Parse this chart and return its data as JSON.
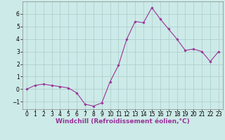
{
  "x": [
    0,
    1,
    2,
    3,
    4,
    5,
    6,
    7,
    8,
    9,
    10,
    11,
    12,
    13,
    14,
    15,
    16,
    17,
    18,
    19,
    20,
    21,
    22,
    23
  ],
  "y": [
    0.0,
    0.3,
    0.4,
    0.3,
    0.2,
    0.1,
    -0.3,
    -1.2,
    -1.35,
    -1.1,
    0.6,
    1.9,
    4.0,
    5.4,
    5.3,
    6.5,
    5.6,
    4.8,
    4.0,
    3.1,
    3.2,
    3.0,
    2.2,
    3.0
  ],
  "xlabel": "Windchill (Refroidissement éolien,°C)",
  "bg_color": "#cceae7",
  "line_color": "#993399",
  "marker_color": "#993399",
  "grid_color": "#aacccc",
  "xlim": [
    -0.5,
    23.5
  ],
  "ylim": [
    -1.6,
    7.0
  ],
  "xticks": [
    0,
    1,
    2,
    3,
    4,
    5,
    6,
    7,
    8,
    9,
    10,
    11,
    12,
    13,
    14,
    15,
    16,
    17,
    18,
    19,
    20,
    21,
    22,
    23
  ],
  "yticks": [
    -1,
    0,
    1,
    2,
    3,
    4,
    5,
    6
  ],
  "tick_fontsize": 5.5,
  "xlabel_fontsize": 6.5,
  "spine_color": "#888888"
}
